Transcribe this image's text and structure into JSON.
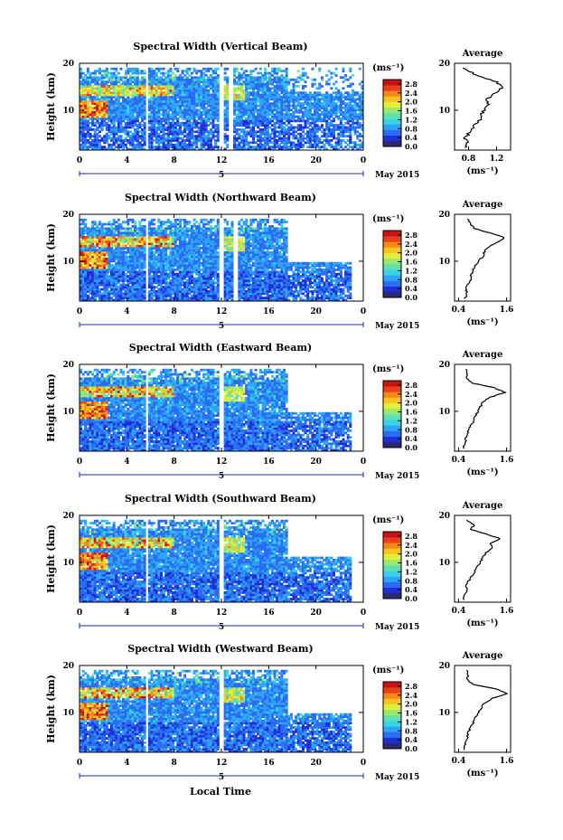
{
  "figure": {
    "x_axis_label": "Local Time",
    "month_label": "May 2015",
    "day_marker_label": "5",
    "colorbar_unit": "(ms⁻¹)",
    "profile_title": "Average",
    "profile_xunit": "(ms⁻¹)"
  },
  "colors": {
    "colormap": [
      "#2b2a6e",
      "#1f2fd6",
      "#2a6cf2",
      "#2fa3f5",
      "#39d3e6",
      "#5fe0b0",
      "#9be870",
      "#e0ef3a",
      "#f8c520",
      "#f58a1a",
      "#e8401a",
      "#c41414"
    ],
    "axis": "#000000",
    "separator": "#1a2aa8"
  },
  "chart_data": [
    {
      "type": "heatmap",
      "title": "Spectral Width (Vertical Beam)",
      "xlabel": "Local Time",
      "ylabel": "Height (km)",
      "xticks": [
        "0",
        "4",
        "8",
        "12",
        "16",
        "20",
        "0"
      ],
      "xlim": [
        0,
        24
      ],
      "yticks": [
        "10",
        "20"
      ],
      "ylim": [
        1.5,
        20
      ],
      "colorbar": {
        "ticks": [
          "0.0",
          "0.4",
          "0.8",
          "1.2",
          "1.6",
          "2.0",
          "2.4",
          "2.8"
        ],
        "range": [
          0,
          3.0
        ]
      },
      "data_gaps_hours": [
        5.7,
        12.0,
        12.8
      ],
      "coverage": "0-24 LT, up to ~19 km",
      "feature": "enhanced width (yellow-red) near 14-16 km around 1-5 LT and at ~10 km near 0 LT",
      "profile": {
        "title": "Average",
        "xticks": [
          "0.8",
          "1.2"
        ],
        "xlim": [
          0.6,
          1.4
        ],
        "yticks": [
          "10",
          "20"
        ],
        "h": [
          2,
          3,
          4,
          5,
          6,
          7,
          8,
          9,
          10,
          11,
          12,
          13,
          14,
          15,
          16,
          17,
          18,
          19
        ],
        "w": [
          0.74,
          0.78,
          0.75,
          0.8,
          0.85,
          0.9,
          0.97,
          0.98,
          1.02,
          1.08,
          1.05,
          1.12,
          1.22,
          1.3,
          1.2,
          1.0,
          0.85,
          0.72
        ]
      }
    },
    {
      "type": "heatmap",
      "title": "Spectral Width (Northward Beam)",
      "xlabel": "Local Time",
      "ylabel": "Height (km)",
      "xticks": [
        "0",
        "4",
        "8",
        "12",
        "16",
        "20",
        "0"
      ],
      "xlim": [
        0,
        24
      ],
      "yticks": [
        "10",
        "20"
      ],
      "ylim": [
        1.5,
        20
      ],
      "colorbar": {
        "ticks": [
          "0.0",
          "0.4",
          "0.8",
          "1.2",
          "1.6",
          "2.0",
          "2.4",
          "2.8"
        ],
        "range": [
          0,
          3.0
        ]
      },
      "data_gaps_hours": [
        5.7,
        12.0,
        13.2
      ],
      "coverage": "full height to 17.5 LT, below ~10 km after",
      "feature": "red patches near 14-15 km around 6-7 LT; enhanced width at 9-11 km near 0-2 LT",
      "profile": {
        "title": "Average",
        "xticks": [
          "0.4",
          "1.6"
        ],
        "xlim": [
          0.3,
          1.7
        ],
        "yticks": [
          "10",
          "20"
        ],
        "h": [
          2,
          3,
          4,
          5,
          6,
          7,
          8,
          9,
          10,
          11,
          12,
          13,
          14,
          15,
          16,
          17,
          18,
          19
        ],
        "w": [
          0.55,
          0.62,
          0.58,
          0.62,
          0.7,
          0.72,
          0.75,
          0.82,
          0.9,
          1.0,
          1.05,
          1.15,
          1.35,
          1.55,
          1.2,
          0.8,
          0.7,
          0.62
        ]
      }
    },
    {
      "type": "heatmap",
      "title": "Spectral Width (Eastward Beam)",
      "xlabel": "Local Time",
      "ylabel": "Height (km)",
      "xticks": [
        "0",
        "4",
        "8",
        "12",
        "16",
        "20",
        "0"
      ],
      "xlim": [
        0,
        24
      ],
      "yticks": [
        "10",
        "20"
      ],
      "ylim": [
        1.5,
        20
      ],
      "colorbar": {
        "ticks": [
          "0.0",
          "0.4",
          "0.8",
          "1.2",
          "1.6",
          "2.0",
          "2.4",
          "2.8"
        ],
        "range": [
          0,
          3.0
        ]
      },
      "data_gaps_hours": [
        5.7,
        12.0
      ],
      "coverage": "full height to 17.5 LT, below ~10 km after",
      "feature": "red layer at ~14 km between 2-5 LT and 6-7 LT; enhanced width at ~10 km near 0-1 LT",
      "profile": {
        "title": "Average",
        "xticks": [
          "0.4",
          "1.6"
        ],
        "xlim": [
          0.3,
          1.7
        ],
        "yticks": [
          "10",
          "20"
        ],
        "h": [
          2,
          3,
          4,
          5,
          6,
          7,
          8,
          9,
          10,
          11,
          12,
          13,
          14,
          15,
          16,
          17,
          18,
          19
        ],
        "w": [
          0.5,
          0.55,
          0.58,
          0.6,
          0.65,
          0.7,
          0.78,
          0.82,
          0.88,
          0.95,
          1.0,
          1.2,
          1.55,
          1.3,
          0.75,
          0.6,
          0.62,
          0.58
        ]
      }
    },
    {
      "type": "heatmap",
      "title": "Spectral Width (Southward Beam)",
      "xlabel": "Local Time",
      "ylabel": "Height (km)",
      "xticks": [
        "0",
        "4",
        "8",
        "12",
        "16",
        "20",
        "0"
      ],
      "xlim": [
        0,
        24
      ],
      "yticks": [
        "10",
        "20"
      ],
      "ylim": [
        1.5,
        20
      ],
      "colorbar": {
        "ticks": [
          "0.0",
          "0.4",
          "0.8",
          "1.2",
          "1.6",
          "2.0",
          "2.4",
          "2.8"
        ],
        "range": [
          0,
          3.0
        ]
      },
      "data_gaps_hours": [
        5.7,
        12.0
      ],
      "coverage": "full height to 17.5 LT, below ~11 km after",
      "feature": "enhanced width 13-15 km at 1-8 LT; red patches near 10 km around 0-2 LT",
      "profile": {
        "title": "Average",
        "xticks": [
          "0.4",
          "1.6"
        ],
        "xlim": [
          0.3,
          1.7
        ],
        "yticks": [
          "10",
          "20"
        ],
        "h": [
          2,
          3,
          4,
          5,
          6,
          7,
          8,
          9,
          10,
          11,
          12,
          13,
          14,
          15,
          16,
          17,
          18,
          19
        ],
        "w": [
          0.52,
          0.55,
          0.6,
          0.6,
          0.65,
          0.72,
          0.8,
          0.85,
          0.95,
          1.0,
          1.08,
          1.25,
          1.2,
          1.45,
          1.1,
          0.7,
          0.8,
          0.6
        ]
      }
    },
    {
      "type": "heatmap",
      "title": "Spectral Width (Westward Beam)",
      "xlabel": "Local Time",
      "ylabel": "Height (km)",
      "xticks": [
        "0",
        "4",
        "8",
        "12",
        "16",
        "20",
        "0"
      ],
      "xlim": [
        0,
        24
      ],
      "yticks": [
        "10",
        "20"
      ],
      "ylim": [
        1.5,
        20
      ],
      "colorbar": {
        "ticks": [
          "0.0",
          "0.4",
          "0.8",
          "1.2",
          "1.6",
          "2.0",
          "2.4",
          "2.8"
        ],
        "range": [
          0,
          3.0
        ]
      },
      "data_gaps_hours": [
        5.7,
        12.0
      ],
      "coverage": "full height to 17.5 LT, below ~10 km after",
      "feature": "red layer at ~14 km between 2-4 LT and 6-7 LT; enhanced width at ~10 km near 0-1 LT",
      "profile": {
        "title": "Average",
        "xticks": [
          "0.4",
          "1.6"
        ],
        "xlim": [
          0.3,
          1.7
        ],
        "yticks": [
          "10",
          "20"
        ],
        "h": [
          2,
          3,
          4,
          5,
          6,
          7,
          8,
          9,
          10,
          11,
          12,
          13,
          14,
          15,
          16,
          17,
          18,
          19
        ],
        "w": [
          0.52,
          0.55,
          0.6,
          0.62,
          0.66,
          0.72,
          0.78,
          0.82,
          0.9,
          0.98,
          1.05,
          1.25,
          1.6,
          1.35,
          0.75,
          0.62,
          0.65,
          0.6
        ]
      }
    }
  ]
}
